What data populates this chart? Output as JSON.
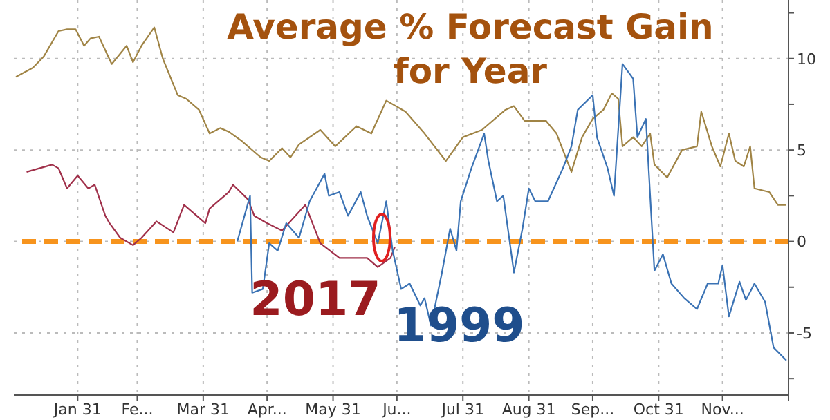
{
  "chart_data": {
    "type": "line",
    "title": "Average % Forecast Gain for Year",
    "xlim": [
      "--01-01",
      "--12-31"
    ],
    "xticks": [
      {
        "value": "--01-31",
        "label": "Jan 31"
      },
      {
        "value": "--02-28",
        "label": "Fe..."
      },
      {
        "value": "--03-31",
        "label": "Mar 31"
      },
      {
        "value": "--04-30",
        "label": "Apr..."
      },
      {
        "value": "--05-31",
        "label": "May 31"
      },
      {
        "value": "--06-30",
        "label": "Ju..."
      },
      {
        "value": "--07-31",
        "label": "Jul 31"
      },
      {
        "value": "--08-31",
        "label": "Aug 31"
      },
      {
        "value": "--09-30",
        "label": "Sep..."
      },
      {
        "value": "--10-31",
        "label": "Oct 31"
      },
      {
        "value": "--11-30",
        "label": "Nov..."
      },
      {
        "value": "--12-31",
        "label": null
      }
    ],
    "ylim": [
      -8.4,
      13.2
    ],
    "yticks": [
      {
        "value": -7.5,
        "label": null
      },
      -5,
      {
        "value": -2.5,
        "label": null
      },
      0,
      {
        "value": 2.5,
        "label": null
      },
      5,
      {
        "value": 7.5,
        "label": null
      },
      10,
      {
        "value": 12.5,
        "label": null
      }
    ],
    "grid": true,
    "legend": false,
    "marker": "none",
    "line_style": "solid",
    "ref_lines": [
      {
        "axis": "y",
        "value": 0,
        "label": null,
        "color": "#f7941d",
        "line_style": "dashed"
      }
    ],
    "series": [
      {
        "color": "#a08445",
        "x": [
          "--01-02",
          "--01-10",
          "--01-15",
          "--01-22",
          "--01-26",
          "--01-30",
          "--02-03",
          "--02-06",
          "--02-10",
          "--02-16",
          "--02-23",
          "--02-26",
          "--03-02",
          "--03-08",
          "--03-12",
          "--03-19",
          "--03-23",
          "--03-29",
          "--04-03",
          "--04-08",
          "--04-12",
          "--04-18",
          "--04-27",
          "--05-01",
          "--05-07",
          "--05-11",
          "--05-15",
          "--05-25",
          "--06-01",
          "--06-11",
          "--06-18",
          "--06-25",
          "--07-04",
          "--07-13",
          "--07-23",
          "--07-31",
          "--08-09",
          "--08-20",
          "--08-24",
          "--08-29",
          "--09-08",
          "--09-13",
          "--09-20",
          "--09-25",
          "--09-30",
          "--10-05",
          "--10-09",
          "--10-12",
          "--10-14",
          "--10-19",
          "--10-23",
          "--10-27",
          "--10-29",
          "--11-04",
          "--11-11",
          "--11-18",
          "--11-20",
          "--11-25",
          "--11-29",
          "--12-03",
          "--12-06",
          "--12-10",
          "--12-13",
          "--12-15",
          "--12-22",
          "--12-26",
          "--12-30"
        ],
        "values": [
          9.0,
          9.5,
          10.1,
          11.5,
          11.6,
          11.6,
          10.7,
          11.1,
          11.2,
          9.7,
          10.7,
          9.8,
          10.7,
          11.7,
          10.0,
          8.0,
          7.8,
          7.2,
          5.9,
          6.2,
          6.0,
          5.5,
          4.6,
          4.4,
          5.1,
          4.6,
          5.3,
          6.1,
          5.2,
          6.3,
          5.9,
          7.7,
          7.1,
          5.9,
          4.4,
          5.7,
          6.1,
          7.2,
          7.4,
          6.6,
          6.6,
          5.9,
          3.8,
          5.7,
          6.7,
          7.2,
          8.1,
          7.8,
          5.2,
          5.7,
          5.2,
          5.9,
          4.2,
          3.5,
          5.0,
          5.2,
          7.1,
          5.2,
          4.1,
          5.9,
          4.4,
          4.1,
          5.2,
          2.9,
          2.7,
          2.0,
          2.0
        ]
      },
      {
        "name": "2017",
        "color": "#a0304a",
        "x": [
          "--01-07",
          "--01-19",
          "--01-22",
          "--01-26",
          "--01-31",
          "--02-05",
          "--02-08",
          "--02-13",
          "--02-15",
          "--02-20",
          "--02-26",
          "--03-02",
          "--03-09",
          "--03-17",
          "--03-22",
          "--04-01",
          "--04-03",
          "--04-12",
          "--04-14",
          "--04-21",
          "--04-24",
          "--04-30",
          "--05-07",
          "--05-18",
          "--05-25",
          "--06-03",
          "--06-16",
          "--06-21",
          "--06-27",
          "--06-29"
        ],
        "values": [
          3.8,
          4.2,
          4.0,
          2.9,
          3.6,
          2.9,
          3.1,
          1.4,
          1.0,
          0.2,
          -0.2,
          0.2,
          1.1,
          0.5,
          2.0,
          1.0,
          1.8,
          2.7,
          3.1,
          2.3,
          1.4,
          1.0,
          0.6,
          2.0,
          -0.1,
          -0.9,
          -0.9,
          -1.4,
          -0.9,
          -0.3
        ]
      },
      {
        "name": "1999",
        "color": "#3a72b4",
        "x": [
          "--04-16",
          "--04-22",
          "--04-23",
          "--04-28",
          "--05-01",
          "--05-05",
          "--05-09",
          "--05-15",
          "--05-20",
          "--05-27",
          "--05-29",
          "--06-03",
          "--06-07",
          "--06-13",
          "--06-16",
          "--06-21",
          "--06-25",
          "--06-28",
          "--07-02",
          "--07-06",
          "--07-11",
          "--07-13",
          "--07-16",
          "--07-21",
          "--07-25",
          "--07-28",
          "--07-30",
          "--08-04",
          "--08-10",
          "--08-12",
          "--08-16",
          "--08-19",
          "--08-24",
          "--08-28",
          "--08-31",
          "--09-03",
          "--09-09",
          "--09-16",
          "--09-20",
          "--09-23",
          "--09-30",
          "--10-02",
          "--10-07",
          "--10-10",
          "--10-14",
          "--10-19",
          "--10-21",
          "--10-25",
          "--10-27",
          "--10-29",
          "--11-02",
          "--11-06",
          "--11-12",
          "--11-18",
          "--11-23",
          "--11-28",
          "--11-30",
          "--12-03",
          "--12-08",
          "--12-11",
          "--12-15",
          "--12-20",
          "--12-24",
          "--12-30"
        ],
        "values": [
          0.0,
          2.5,
          -2.8,
          -2.6,
          -0.1,
          -0.5,
          1.0,
          0.2,
          2.2,
          3.7,
          2.5,
          2.7,
          1.4,
          2.7,
          1.4,
          -0.1,
          2.2,
          -0.5,
          -2.6,
          -2.3,
          -3.5,
          -3.1,
          -4.6,
          -1.8,
          0.7,
          -0.5,
          2.2,
          4.0,
          5.9,
          4.4,
          2.2,
          2.5,
          -1.7,
          0.7,
          2.9,
          2.2,
          2.2,
          4.0,
          5.2,
          7.2,
          8.0,
          5.7,
          4.0,
          2.5,
          9.7,
          8.9,
          5.7,
          6.7,
          2.5,
          -1.6,
          -0.7,
          -2.3,
          -3.1,
          -3.7,
          -2.3,
          -2.3,
          -1.3,
          -4.1,
          -2.2,
          -3.2,
          -2.3,
          -3.3,
          -5.8,
          -6.5
        ]
      }
    ]
  }
}
